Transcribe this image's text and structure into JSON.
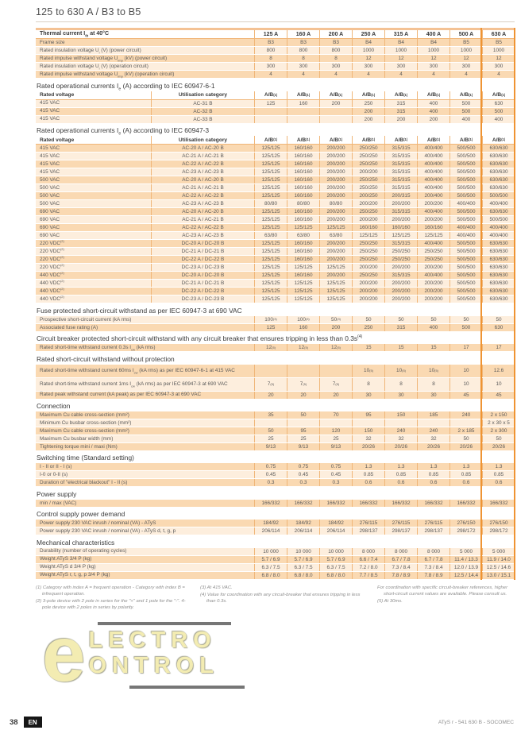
{
  "page": {
    "title": "125 to 630 A / B3 to B5",
    "footer_left_page": "38",
    "footer_left_lang": "EN",
    "footer_right": "ATyS r - 541 630 B - SOCOMEC",
    "watermark_line1": "LECTRO",
    "watermark_line2": "ONTROL",
    "watermark_letter": "e"
  },
  "colors": {
    "accent_orange": "#ef9433",
    "row_dark": "#fad9b2",
    "row_light": "#fdeedd",
    "cell_border": "#f0b678",
    "watermark_yellow": "#f3ecb2"
  },
  "sections": [
    {
      "kind": "simple",
      "main_header": {
        "label": "Thermal current I<sub>th</sub> at 40°C",
        "cols": [
          "125 A",
          "160 A",
          "200 A",
          "250 A",
          "315 A",
          "400 A",
          "500 A",
          "630 A"
        ]
      },
      "rows": [
        {
          "label": "Frame size",
          "values": [
            "B3",
            "B3",
            "B3",
            "B4",
            "B4",
            "B4",
            "B5",
            "B5"
          ]
        },
        {
          "label": "Rated insulation voltage U<sub>i</sub> (V) (power circuit)",
          "values": [
            "800",
            "800",
            "800",
            "1000",
            "1000",
            "1000",
            "1000",
            "1000"
          ]
        },
        {
          "label": "Rated impulse withstand voltage U<sub>imp</sub> (kV) (power circuit)",
          "values": [
            "8",
            "8",
            "8",
            "12",
            "12",
            "12",
            "12",
            "12"
          ]
        },
        {
          "label": "Rated insulation voltage U<sub>i</sub> (V) (operation circuit)",
          "values": [
            "300",
            "300",
            "300",
            "300",
            "300",
            "300",
            "300",
            "300"
          ]
        },
        {
          "label": "Rated impulse withstand voltage U<sub>imp</sub> (kV) (operation circuit)",
          "values": [
            "4",
            "4",
            "4",
            "4",
            "4",
            "4",
            "4",
            "4"
          ]
        }
      ]
    },
    {
      "kind": "cat",
      "heading": "Rated operational currents I<sub>e</sub> (A) according to IEC 60947-6-1",
      "subheader": {
        "voltage": "Rated voltage",
        "category": "Utilisation category",
        "ab": "A/B<sup>(1)</sup>"
      },
      "rows": [
        {
          "voltage": "415 VAC",
          "category": "AC-31 B",
          "values": [
            "125",
            "160",
            "200",
            "250",
            "315",
            "400",
            "500",
            "630"
          ]
        },
        {
          "voltage": "415 VAC",
          "category": "AC-32 B",
          "values": [
            "",
            "",
            "",
            "200",
            "315",
            "400",
            "500",
            "500"
          ]
        },
        {
          "voltage": "415 VAC",
          "category": "AC-33 B",
          "values": [
            "",
            "",
            "",
            "200",
            "200",
            "200",
            "400",
            "400"
          ]
        }
      ]
    },
    {
      "kind": "cat",
      "heading": "Rated operational currents I<sub>e</sub> (A) according to IEC 60947-3",
      "subheader": {
        "voltage": "Rated voltage",
        "category": "Utilisation category",
        "ab": "A/B<sup>(1)</sup>"
      },
      "rows": [
        {
          "voltage": "415 VAC",
          "category": "AC-20 A / AC-20 B",
          "values": [
            "125/125",
            "160/160",
            "200/200",
            "250/250",
            "315/315",
            "400/400",
            "500/500",
            "630/630"
          ]
        },
        {
          "voltage": "415 VAC",
          "category": "AC-21 A / AC-21 B",
          "values": [
            "125/125",
            "160/160",
            "200/200",
            "250/250",
            "315/315",
            "400/400",
            "500/500",
            "630/630"
          ]
        },
        {
          "voltage": "415 VAC",
          "category": "AC-22 A / AC-22 B",
          "values": [
            "125/125",
            "160/160",
            "200/200",
            "250/250",
            "315/315",
            "400/400",
            "500/500",
            "630/630"
          ]
        },
        {
          "voltage": "415 VAC",
          "category": "AC-23 A / AC-23 B",
          "values": [
            "125/125",
            "160/160",
            "200/200",
            "200/200",
            "315/315",
            "400/400",
            "500/500",
            "630/630"
          ]
        },
        {
          "voltage": "500 VAC",
          "category": "AC-20 A / AC-20 B",
          "values": [
            "125/125",
            "160/160",
            "200/200",
            "250/250",
            "315/315",
            "400/400",
            "500/500",
            "630/630"
          ]
        },
        {
          "voltage": "500 VAC",
          "category": "AC-21 A / AC-21 B",
          "values": [
            "125/125",
            "160/160",
            "200/200",
            "250/250",
            "315/315",
            "400/400",
            "500/500",
            "630/630"
          ]
        },
        {
          "voltage": "500 VAC",
          "category": "AC-22 A / AC-22 B",
          "values": [
            "125/125",
            "160/160",
            "200/200",
            "200/250",
            "200/315",
            "200/400",
            "500/500",
            "500/500"
          ]
        },
        {
          "voltage": "500 VAC",
          "category": "AC-23 A / AC-23 B",
          "values": [
            "80/80",
            "80/80",
            "80/80",
            "200/200",
            "200/200",
            "200/200",
            "400/400",
            "400/400"
          ]
        },
        {
          "voltage": "690 VAC",
          "category": "AC-20 A / AC-20 B",
          "values": [
            "125/125",
            "160/160",
            "200/200",
            "250/250",
            "315/315",
            "400/400",
            "500/500",
            "630/630"
          ]
        },
        {
          "voltage": "690 VAC",
          "category": "AC-21 A / AC-21 B",
          "values": [
            "125/125",
            "160/160",
            "200/200",
            "200/200",
            "200/200",
            "200/200",
            "500/500",
            "500/500"
          ]
        },
        {
          "voltage": "690 VAC",
          "category": "AC-22 A / AC-22 B",
          "values": [
            "125/125",
            "125/125",
            "125/125",
            "160/160",
            "160/160",
            "160/160",
            "400/400",
            "400/400"
          ]
        },
        {
          "voltage": "690 VAC",
          "category": "AC-23 A / AC-23 B",
          "values": [
            "63/80",
            "63/80",
            "63/80",
            "125/125",
            "125/125",
            "125/125",
            "400/400",
            "400/400"
          ]
        },
        {
          "voltage": "220 VDC<sup>(2)</sup>",
          "category": "DC-20 A / DC-20 B",
          "values": [
            "125/125",
            "160/160",
            "200/200",
            "250/250",
            "315/315",
            "400/400",
            "500/500",
            "630/630"
          ]
        },
        {
          "voltage": "220 VDC<sup>(2)</sup>",
          "category": "DC-21 A / DC-21 B",
          "values": [
            "125/125",
            "160/160",
            "200/200",
            "250/250",
            "250/250",
            "250/250",
            "500/500",
            "630/630"
          ]
        },
        {
          "voltage": "220 VDC<sup>(2)</sup>",
          "category": "DC-22 A / DC-22 B",
          "values": [
            "125/125",
            "160/160",
            "200/200",
            "250/250",
            "250/250",
            "250/250",
            "500/500",
            "630/630"
          ]
        },
        {
          "voltage": "220 VDC<sup>(2)</sup>",
          "category": "DC-23 A / DC-23 B",
          "values": [
            "125/125",
            "125/125",
            "125/125",
            "200/200",
            "200/200",
            "200/200",
            "500/500",
            "630/630"
          ]
        },
        {
          "voltage": "440 VDC<sup>(2)</sup>",
          "category": "DC-20 A / DC-20 B",
          "values": [
            "125/125",
            "160/160",
            "200/200",
            "250/250",
            "315/315",
            "400/400",
            "500/500",
            "630/630"
          ]
        },
        {
          "voltage": "440 VDC<sup>(2)</sup>",
          "category": "DC-21 A / DC-21 B",
          "values": [
            "125/125",
            "125/125",
            "125/125",
            "200/200",
            "200/200",
            "200/200",
            "500/500",
            "630/630"
          ]
        },
        {
          "voltage": "440 VDC<sup>(2)</sup>",
          "category": "DC-22 A / DC-22 B",
          "values": [
            "125/125",
            "125/125",
            "125/125",
            "200/200",
            "200/200",
            "200/200",
            "500/500",
            "630/630"
          ]
        },
        {
          "voltage": "440 VDC<sup>(2)</sup>",
          "category": "DC-23 A / DC-23 B",
          "values": [
            "125/125",
            "125/125",
            "125/125",
            "200/200",
            "200/200",
            "200/200",
            "500/500",
            "630/630"
          ]
        }
      ]
    },
    {
      "kind": "simple",
      "heading": "Fuse protected short-circuit withstand as per IEC 60947-3 at 690 VAC",
      "rows": [
        {
          "label": "Prospective short-circuit current (kA rms)",
          "values": [
            "100<sup>(3)</sup>",
            "100<sup>(3)</sup>",
            "50<sup>(3)</sup>",
            "50",
            "50",
            "50",
            "50",
            "50"
          ]
        },
        {
          "label": "Associated fuse rating (A)",
          "values": [
            "125",
            "160",
            "200",
            "250",
            "315",
            "400",
            "500",
            "630"
          ]
        }
      ]
    },
    {
      "kind": "simple",
      "heading": "Circuit breaker protected short-circuit withstand with any circuit breaker that ensures tripping in less than 0.3s<sup>(4)</sup>",
      "rows": [
        {
          "label": "Rated short-time withstand current 0.3s I<sub>cw</sub> (kA rms)",
          "values": [
            "12<sup>(5)</sup>",
            "12<sup>(5)</sup>",
            "12<sup>(5)</sup>",
            "15",
            "15",
            "15",
            "17",
            "17"
          ]
        }
      ]
    },
    {
      "kind": "simple",
      "heading": "Rated short-circuit withstand without protection",
      "rows": [
        {
          "label": "Rated short-time withstand current 60ms I<sub>cw</sub> (kA rms) as per IEC 60947-6-1 at 415 VAC",
          "tall": true,
          "values": [
            "",
            "",
            "",
            "10<sup>(5)</sup>",
            "10<sup>(5)</sup>",
            "10<sup>(5)</sup>",
            "10",
            "12.6"
          ]
        },
        {
          "label": "Rated short-time withstand current 1ms I<sub>cw</sub> (kA rms) as per IEC 60947-3 at 690 VAC",
          "tall": true,
          "values": [
            "7<sup>(5)</sup>",
            "7<sup>(5)</sup>",
            "7<sup>(5)</sup>",
            "8",
            "8",
            "8",
            "10",
            "10"
          ]
        },
        {
          "label": "Rated peak withstand current (kA peak) as per IEC 60947-3 at 690 VAC",
          "values": [
            "20",
            "20",
            "20",
            "30",
            "30",
            "30",
            "45",
            "45"
          ]
        }
      ]
    },
    {
      "kind": "simple",
      "heading": "Connection",
      "rows": [
        {
          "label": "Maximum Cu cable cross-section (mm²)",
          "values": [
            "35",
            "50",
            "70",
            "95",
            "150",
            "185",
            "240",
            "2 x 150"
          ]
        },
        {
          "label": "Minimum Cu busbar cross-section (mm²)",
          "values": [
            "",
            "",
            "",
            "",
            "",
            "",
            "",
            "2 x 30 x 5"
          ]
        },
        {
          "label": "Maximum Cu cable cross-section (mm²)",
          "values": [
            "50",
            "95",
            "120",
            "150",
            "240",
            "240",
            "2 x 185",
            "2 x 300"
          ]
        },
        {
          "label": "Maximum Cu busbar width (mm)",
          "values": [
            "25",
            "25",
            "25",
            "32",
            "32",
            "32",
            "50",
            "50"
          ]
        },
        {
          "label": "Tightening torque mini / maxi (Nm)",
          "values": [
            "9/13",
            "9/13",
            "9/13",
            "20/26",
            "20/26",
            "20/26",
            "20/26",
            "20/26"
          ]
        }
      ]
    },
    {
      "kind": "simple",
      "heading": "Switching time (Standard setting)",
      "rows": [
        {
          "label": "I - II or II - I (s)",
          "values": [
            "0.75",
            "0.75",
            "0.75",
            "1.3",
            "1.3",
            "1.3",
            "1.3",
            "1.3"
          ]
        },
        {
          "label": "I-0 or 0-II (s)",
          "values": [
            "0.45",
            "0.45",
            "0.45",
            "0.85",
            "0.85",
            "0.85",
            "0.85",
            "0.85"
          ]
        },
        {
          "label": "Duration of \"electrical blackout\" I - II (s)",
          "values": [
            "0.3",
            "0.3",
            "0.3",
            "0.6",
            "0.6",
            "0.6",
            "0.6",
            "0.6"
          ]
        }
      ]
    },
    {
      "kind": "simple",
      "heading": "Power supply",
      "rows": [
        {
          "label": "min / max (VAC)",
          "values": [
            "166/332",
            "166/332",
            "166/332",
            "166/332",
            "166/332",
            "166/332",
            "166/332",
            "166/332"
          ]
        }
      ]
    },
    {
      "kind": "simple",
      "heading": "Control supply power demand",
      "rows": [
        {
          "label": "Power supply 230 VAC inrush / nominal (VA) - ATyS",
          "values": [
            "184/92",
            "184/92",
            "184/92",
            "276/115",
            "276/115",
            "276/115",
            "276/150",
            "276/150"
          ]
        },
        {
          "label": "Power supply 230 VAC inrush / nominal (VA) - ATyS d, t, g, p",
          "values": [
            "206/114",
            "206/114",
            "206/114",
            "298/137",
            "298/137",
            "298/137",
            "298/172",
            "298/172"
          ]
        }
      ]
    },
    {
      "kind": "simple",
      "heading": "Mechanical characteristics",
      "rows": [
        {
          "label": "Durability (number of operating cycles)",
          "values": [
            "10 000",
            "10 000",
            "10 000",
            "8 000",
            "8 000",
            "8 000",
            "5 000",
            "5 000"
          ]
        },
        {
          "label": "Weight ATyS 3/4 P (kg)",
          "values": [
            "5.7 / 6.9",
            "5.7 / 6.9",
            "5.7 / 6.9",
            "6.6 / 7.4",
            "6.7 / 7.8",
            "6.7 / 7.8",
            "11.4 / 13.3",
            "11.9 / 14.0"
          ]
        },
        {
          "label": "Weight ATyS d 3/4 P (kg)",
          "values": [
            "6.3 / 7.5",
            "6.3 / 7.5",
            "6.3 / 7.5",
            "7.2 / 8.0",
            "7.3 / 8.4",
            "7.3 / 8.4",
            "12.0 / 13.9",
            "12.5 / 14.6"
          ]
        },
        {
          "label": "Weight ATyS r, t, g, p 3/4 P (kg)",
          "values": [
            "6.8 / 8.0",
            "6.8 / 8.0",
            "6.8 / 8.0",
            "7.7 / 8.5",
            "7.8 / 8.9",
            "7.8 / 8.9",
            "12.5 / 14.4",
            "13.0 / 15.1"
          ]
        }
      ]
    }
  ],
  "footnotes": {
    "col1": [
      "(1) Category with index A = frequent operation - Category with index B = infrequent operation.",
      "(2) 3-pole device with 2 pole in series for the \"+\" and 1 pole for the \"-\". 4-pole device with 2 poles in series by polarity."
    ],
    "col2": [
      "(3) At 415 VAC.",
      "(4) Value for coordination with any circuit-breaker that ensures tripping in less than 0.3s."
    ],
    "col3": [
      "For coordination with specific circuit-breaker references, higher short-circuit current values are available. Please consult us.",
      "(5) At 30ms."
    ]
  }
}
